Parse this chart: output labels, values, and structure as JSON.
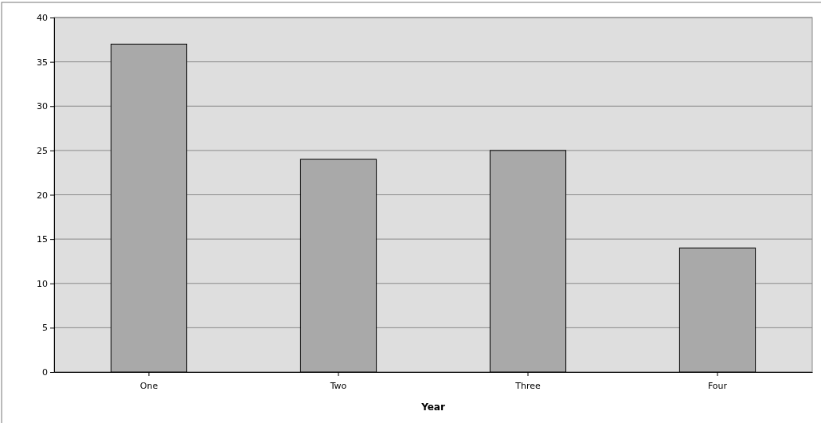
{
  "chart_data": {
    "type": "bar",
    "xlabel": "Year",
    "categories": [
      "One",
      "Two",
      "Three",
      "Four"
    ],
    "values": [
      37,
      24,
      25,
      14
    ],
    "color": "#a9a9a9",
    "ylim": [
      0,
      40
    ],
    "yticks": [
      0,
      5,
      10,
      15,
      20,
      25,
      30,
      35,
      40
    ],
    "grid": "y"
  }
}
